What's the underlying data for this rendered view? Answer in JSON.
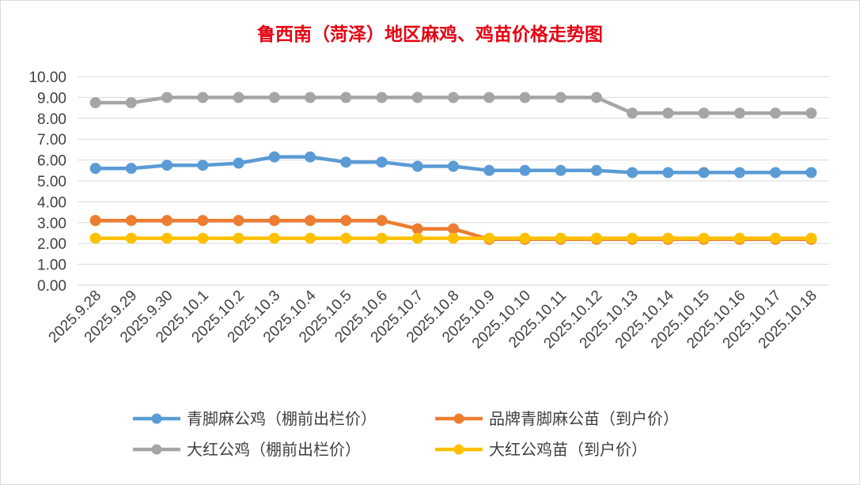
{
  "chart_data": {
    "type": "line",
    "title": "鲁西南（菏泽）地区麻鸡、鸡苗价格走势图",
    "xlabel": "",
    "ylabel": "",
    "ylim": [
      0,
      10
    ],
    "yticks": [
      "0.00",
      "1.00",
      "2.00",
      "3.00",
      "4.00",
      "5.00",
      "6.00",
      "7.00",
      "8.00",
      "9.00",
      "10.00"
    ],
    "grid": true,
    "legend_position": "bottom",
    "categories": [
      "2025.9.28",
      "2025.9.29",
      "2025.9.30",
      "2025.10.1",
      "2025.10.2",
      "2025.10.3",
      "2025.10.4",
      "2025.10.5",
      "2025.10.6",
      "2025.10.7",
      "2025.10.8",
      "2025.10.9",
      "2025.10.10",
      "2025.10.11",
      "2025.10.12",
      "2025.10.13",
      "2025.10.14",
      "2025.10.15",
      "2025.10.16",
      "2025.10.17",
      "2025.10.18"
    ],
    "series": [
      {
        "name": "青脚麻公鸡（棚前出栏价）",
        "color": "#5b9bd5",
        "values": [
          5.6,
          5.6,
          5.75,
          5.75,
          5.85,
          6.15,
          6.15,
          5.9,
          5.9,
          5.7,
          5.7,
          5.5,
          5.5,
          5.5,
          5.5,
          5.4,
          5.4,
          5.4,
          5.4,
          5.4,
          5.4
        ]
      },
      {
        "name": "品牌青脚麻公苗（到户价）",
        "color": "#ed7d31",
        "values": [
          3.1,
          3.1,
          3.1,
          3.1,
          3.1,
          3.1,
          3.1,
          3.1,
          3.1,
          2.7,
          2.7,
          2.2,
          2.2,
          2.2,
          2.2,
          2.2,
          2.2,
          2.2,
          2.2,
          2.2,
          2.2
        ]
      },
      {
        "name": "大红公鸡（棚前出栏价）",
        "color": "#a5a5a5",
        "values": [
          8.75,
          8.75,
          9.0,
          9.0,
          9.0,
          9.0,
          9.0,
          9.0,
          9.0,
          9.0,
          9.0,
          9.0,
          9.0,
          9.0,
          9.0,
          8.25,
          8.25,
          8.25,
          8.25,
          8.25,
          8.25
        ]
      },
      {
        "name": "大红公鸡苗（到户价）",
        "color": "#ffc000",
        "values": [
          2.25,
          2.25,
          2.25,
          2.25,
          2.25,
          2.25,
          2.25,
          2.25,
          2.25,
          2.25,
          2.25,
          2.25,
          2.25,
          2.25,
          2.25,
          2.25,
          2.25,
          2.25,
          2.25,
          2.25,
          2.25
        ]
      }
    ]
  }
}
